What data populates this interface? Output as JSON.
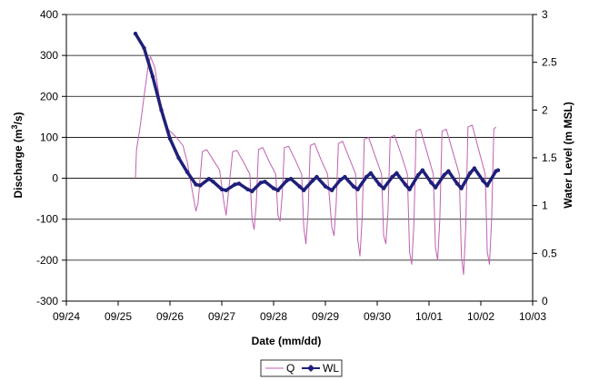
{
  "chart_data": {
    "type": "line",
    "xlabel": "Date (mm/dd)",
    "ylabel_left": "Discharge (m",
    "ylabel_left_sup": "3",
    "ylabel_left_end": "/s)",
    "ylabel_right": "Water Level (m MSL)",
    "x_ticks": [
      "09/24",
      "09/25",
      "09/26",
      "09/27",
      "09/28",
      "09/29",
      "09/30",
      "10/01",
      "10/02",
      "10/03"
    ],
    "y_left_ticks": [
      400,
      300,
      200,
      100,
      0,
      -100,
      -200,
      -300
    ],
    "y_right_ticks": [
      3,
      2.5,
      2,
      1.5,
      1,
      0.5,
      0
    ],
    "ylim_left": [
      -300,
      400
    ],
    "ylim_right": [
      0,
      3
    ],
    "grid": "horizontal",
    "legend_position": "bottom-center",
    "series": [
      {
        "name": "Q",
        "axis": "left",
        "color": "#c060b0",
        "style": "thin-line",
        "points": [
          [
            "09/25 08:00",
            0
          ],
          [
            "09/25 08:30",
            70
          ],
          [
            "09/25 10:00",
            120
          ],
          [
            "09/25 12:00",
            200
          ],
          [
            "09/25 14:00",
            280
          ],
          [
            "09/25 15:00",
            297
          ],
          [
            "09/25 17:00",
            270
          ],
          [
            "09/25 19:00",
            200
          ],
          [
            "09/25 21:00",
            150
          ],
          [
            "09/25 23:00",
            120
          ],
          [
            "09/26 01:00",
            110
          ],
          [
            "09/26 03:00",
            100
          ],
          [
            "09/26 06:00",
            80
          ],
          [
            "09/26 08:00",
            40
          ],
          [
            "09/26 10:00",
            -20
          ],
          [
            "09/26 12:00",
            -80
          ],
          [
            "09/26 13:00",
            -60
          ],
          [
            "09/26 15:00",
            65
          ],
          [
            "09/26 17:00",
            70
          ],
          [
            "09/26 20:00",
            45
          ],
          [
            "09/26 23:00",
            20
          ],
          [
            "09/27 01:00",
            -60
          ],
          [
            "09/27 02:00",
            -90
          ],
          [
            "09/27 03:00",
            -40
          ],
          [
            "09/27 05:00",
            65
          ],
          [
            "09/27 07:00",
            68
          ],
          [
            "09/27 10:00",
            40
          ],
          [
            "09/27 13:00",
            10
          ],
          [
            "09/27 14:00",
            -100
          ],
          [
            "09/27 15:00",
            -125
          ],
          [
            "09/27 16:00",
            -60
          ],
          [
            "09/27 17:00",
            70
          ],
          [
            "09/27 19:00",
            75
          ],
          [
            "09/27 22:00",
            40
          ],
          [
            "09/28 01:00",
            10
          ],
          [
            "09/28 02:00",
            -90
          ],
          [
            "09/28 03:00",
            -105
          ],
          [
            "09/28 04:00",
            -40
          ],
          [
            "09/28 05:00",
            75
          ],
          [
            "09/28 07:00",
            78
          ],
          [
            "09/28 10:00",
            45
          ],
          [
            "09/28 13:00",
            10
          ],
          [
            "09/28 14:00",
            -120
          ],
          [
            "09/28 15:00",
            -160
          ],
          [
            "09/28 16:00",
            -80
          ],
          [
            "09/28 17:00",
            80
          ],
          [
            "09/28 19:00",
            85
          ],
          [
            "09/28 22:00",
            45
          ],
          [
            "09/29 01:00",
            10
          ],
          [
            "09/29 03:00",
            -120
          ],
          [
            "09/29 04:00",
            -140
          ],
          [
            "09/29 05:00",
            -60
          ],
          [
            "09/29 06:00",
            85
          ],
          [
            "09/29 08:00",
            90
          ],
          [
            "09/29 11:00",
            50
          ],
          [
            "09/29 14:00",
            10
          ],
          [
            "09/29 15:00",
            -150
          ],
          [
            "09/29 16:00",
            -190
          ],
          [
            "09/29 17:00",
            -100
          ],
          [
            "09/29 18:00",
            95
          ],
          [
            "09/29 20:00",
            100
          ],
          [
            "09/29 23:00",
            55
          ],
          [
            "09/30 02:00",
            10
          ],
          [
            "09/30 03:00",
            -140
          ],
          [
            "09/30 04:00",
            -160
          ],
          [
            "09/30 05:00",
            -80
          ],
          [
            "09/30 06:00",
            100
          ],
          [
            "09/30 08:00",
            105
          ],
          [
            "09/30 11:00",
            60
          ],
          [
            "09/30 14:00",
            10
          ],
          [
            "09/30 15:00",
            -180
          ],
          [
            "09/30 16:00",
            -210
          ],
          [
            "09/30 17:00",
            -110
          ],
          [
            "09/30 18:00",
            115
          ],
          [
            "09/30 20:00",
            120
          ],
          [
            "09/30 23:00",
            65
          ],
          [
            "10/01 02:00",
            10
          ],
          [
            "10/01 03:00",
            -170
          ],
          [
            "10/01 04:00",
            -200
          ],
          [
            "10/01 05:00",
            -100
          ],
          [
            "10/01 06:00",
            115
          ],
          [
            "10/01 08:00",
            120
          ],
          [
            "10/01 11:00",
            65
          ],
          [
            "10/01 14:00",
            10
          ],
          [
            "10/01 15:00",
            -190
          ],
          [
            "10/01 16:00",
            -235
          ],
          [
            "10/01 17:00",
            -120
          ],
          [
            "10/01 18:00",
            125
          ],
          [
            "10/01 20:00",
            130
          ],
          [
            "10/01 23:00",
            70
          ],
          [
            "10/02 02:00",
            10
          ],
          [
            "10/02 03:00",
            -180
          ],
          [
            "10/02 04:00",
            -210
          ],
          [
            "10/02 05:00",
            -100
          ],
          [
            "10/02 06:00",
            120
          ],
          [
            "10/02 07:00",
            125
          ]
        ]
      },
      {
        "name": "WL",
        "axis": "right",
        "color": "#1f1f7a",
        "style": "thick-line-with-markers",
        "points": [
          [
            "09/25 08:00",
            2.8
          ],
          [
            "09/25 12:00",
            2.65
          ],
          [
            "09/25 16:00",
            2.35
          ],
          [
            "09/25 20:00",
            2.0
          ],
          [
            "09/26 00:00",
            1.7
          ],
          [
            "09/26 04:00",
            1.5
          ],
          [
            "09/26 08:00",
            1.35
          ],
          [
            "09/26 12:00",
            1.22
          ],
          [
            "09/26 14:00",
            1.21
          ],
          [
            "09/26 18:00",
            1.28
          ],
          [
            "09/26 20:00",
            1.25
          ],
          [
            "09/27 00:00",
            1.17
          ],
          [
            "09/27 02:00",
            1.16
          ],
          [
            "09/27 06:00",
            1.22
          ],
          [
            "09/27 08:00",
            1.23
          ],
          [
            "09/27 12:00",
            1.17
          ],
          [
            "09/27 14:00",
            1.15
          ],
          [
            "09/27 18:00",
            1.24
          ],
          [
            "09/27 20:00",
            1.25
          ],
          [
            "09/28 00:00",
            1.18
          ],
          [
            "09/28 02:00",
            1.16
          ],
          [
            "09/28 06:00",
            1.26
          ],
          [
            "09/28 08:00",
            1.28
          ],
          [
            "09/28 12:00",
            1.2
          ],
          [
            "09/28 14:00",
            1.16
          ],
          [
            "09/28 18:00",
            1.26
          ],
          [
            "09/28 20:00",
            1.3
          ],
          [
            "09/29 00:00",
            1.2
          ],
          [
            "09/29 03:00",
            1.16
          ],
          [
            "09/29 07:00",
            1.27
          ],
          [
            "09/29 09:00",
            1.3
          ],
          [
            "09/29 13:00",
            1.2
          ],
          [
            "09/29 15:00",
            1.17
          ],
          [
            "09/29 19:00",
            1.3
          ],
          [
            "09/29 21:00",
            1.34
          ],
          [
            "09/30 01:00",
            1.22
          ],
          [
            "09/30 03:00",
            1.18
          ],
          [
            "09/30 07:00",
            1.3
          ],
          [
            "09/30 09:00",
            1.34
          ],
          [
            "09/30 13:00",
            1.22
          ],
          [
            "09/30 15:00",
            1.17
          ],
          [
            "09/30 19:00",
            1.32
          ],
          [
            "09/30 21:00",
            1.37
          ],
          [
            "10/01 01:00",
            1.24
          ],
          [
            "10/01 03:00",
            1.19
          ],
          [
            "10/01 07:00",
            1.32
          ],
          [
            "10/01 09:00",
            1.36
          ],
          [
            "10/01 13:00",
            1.23
          ],
          [
            "10/01 15:00",
            1.18
          ],
          [
            "10/01 19:00",
            1.34
          ],
          [
            "10/01 21:00",
            1.39
          ],
          [
            "10/02 01:00",
            1.26
          ],
          [
            "10/02 03:00",
            1.21
          ],
          [
            "10/02 07:00",
            1.36
          ],
          [
            "10/02 08:00",
            1.37
          ]
        ]
      }
    ]
  }
}
